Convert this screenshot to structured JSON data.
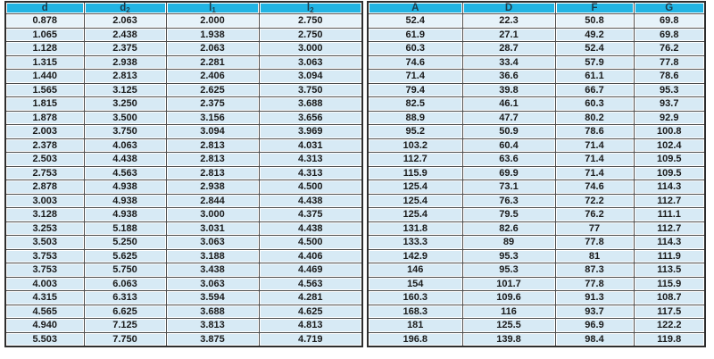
{
  "colors": {
    "header_bg": "#22b4e3",
    "header_text": "#1e3c4c",
    "row_bg": "#d7eaf5",
    "first_row_bg": "#e6f2f9",
    "cell_text": "#1a1a1a",
    "grid_line": "#4d4d4d",
    "outer_border": "#2e2e2e",
    "page_bg": "#ffffff"
  },
  "chart_data": {
    "type": "table",
    "title": "",
    "columns": [
      {
        "label": "d",
        "base": "d",
        "sub": ""
      },
      {
        "label": "d2",
        "base": "d",
        "sub": "2"
      },
      {
        "label": "l1",
        "base": "l",
        "sub": "1"
      },
      {
        "label": "l2",
        "base": "l",
        "sub": "2"
      },
      {
        "label": "A",
        "base": "A",
        "sub": ""
      },
      {
        "label": "D",
        "base": "D",
        "sub": ""
      },
      {
        "label": "F",
        "base": "F",
        "sub": ""
      },
      {
        "label": "G",
        "base": "G",
        "sub": ""
      }
    ],
    "column_groups": [
      [
        0,
        1,
        2,
        3
      ],
      [
        4,
        5,
        6,
        7
      ]
    ],
    "rows": [
      [
        "0.878",
        "2.063",
        "2.000",
        "2.750",
        "52.4",
        "22.3",
        "50.8",
        "69.8"
      ],
      [
        "1.065",
        "2.438",
        "1.938",
        "2.750",
        "61.9",
        "27.1",
        "49.2",
        "69.8"
      ],
      [
        "1.128",
        "2.375",
        "2.063",
        "3.000",
        "60.3",
        "28.7",
        "52.4",
        "76.2"
      ],
      [
        "1.315",
        "2.938",
        "2.281",
        "3.063",
        "74.6",
        "33.4",
        "57.9",
        "77.8"
      ],
      [
        "1.440",
        "2.813",
        "2.406",
        "3.094",
        "71.4",
        "36.6",
        "61.1",
        "78.6"
      ],
      [
        "1.565",
        "3.125",
        "2.625",
        "3.750",
        "79.4",
        "39.8",
        "66.7",
        "95.3"
      ],
      [
        "1.815",
        "3.250",
        "2.375",
        "3.688",
        "82.5",
        "46.1",
        "60.3",
        "93.7"
      ],
      [
        "1.878",
        "3.500",
        "3.156",
        "3.656",
        "88.9",
        "47.7",
        "80.2",
        "92.9"
      ],
      [
        "2.003",
        "3.750",
        "3.094",
        "3.969",
        "95.2",
        "50.9",
        "78.6",
        "100.8"
      ],
      [
        "2.378",
        "4.063",
        "2.813",
        "4.031",
        "103.2",
        "60.4",
        "71.4",
        "102.4"
      ],
      [
        "2.503",
        "4.438",
        "2.813",
        "4.313",
        "112.7",
        "63.6",
        "71.4",
        "109.5"
      ],
      [
        "2.753",
        "4.563",
        "2.813",
        "4.313",
        "115.9",
        "69.9",
        "71.4",
        "109.5"
      ],
      [
        "2.878",
        "4.938",
        "2.938",
        "4.500",
        "125.4",
        "73.1",
        "74.6",
        "114.3"
      ],
      [
        "3.003",
        "4.938",
        "2.844",
        "4.438",
        "125.4",
        "76.3",
        "72.2",
        "112.7"
      ],
      [
        "3.128",
        "4.938",
        "3.000",
        "4.375",
        "125.4",
        "79.5",
        "76.2",
        "111.1"
      ],
      [
        "3.253",
        "5.188",
        "3.031",
        "4.438",
        "131.8",
        "82.6",
        "77",
        "112.7"
      ],
      [
        "3.503",
        "5.250",
        "3.063",
        "4.500",
        "133.3",
        "89",
        "77.8",
        "114.3"
      ],
      [
        "3.753",
        "5.625",
        "3.188",
        "4.406",
        "142.9",
        "95.3",
        "81",
        "111.9"
      ],
      [
        "3.753",
        "5.750",
        "3.438",
        "4.469",
        "146",
        "95.3",
        "87.3",
        "113.5"
      ],
      [
        "4.003",
        "6.063",
        "3.063",
        "4.563",
        "154",
        "101.7",
        "77.8",
        "115.9"
      ],
      [
        "4.315",
        "6.313",
        "3.594",
        "4.281",
        "160.3",
        "109.6",
        "91.3",
        "108.7"
      ],
      [
        "4.565",
        "6.625",
        "3.688",
        "4.625",
        "168.3",
        "116",
        "93.7",
        "117.5"
      ],
      [
        "4.940",
        "7.125",
        "3.813",
        "4.813",
        "181",
        "125.5",
        "96.9",
        "122.2"
      ],
      [
        "5.503",
        "7.750",
        "3.875",
        "4.719",
        "196.8",
        "139.8",
        "98.4",
        "119.8"
      ]
    ]
  }
}
